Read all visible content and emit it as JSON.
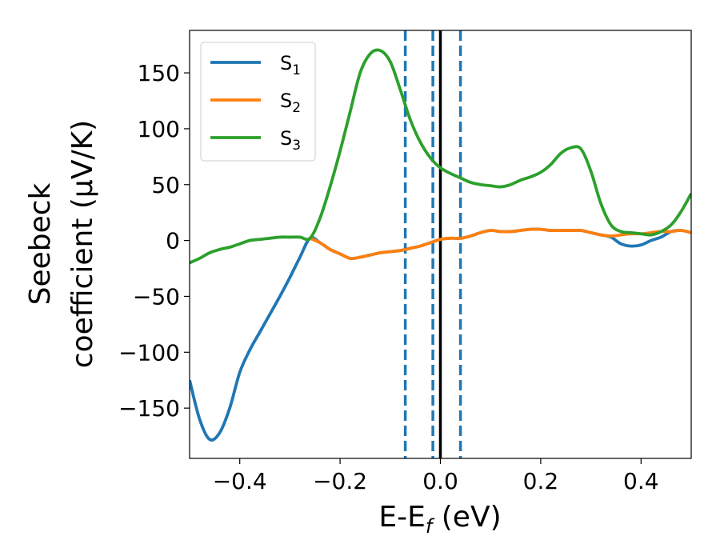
{
  "chart_data": {
    "type": "line",
    "xlabel": {
      "base": "E-E",
      "sub": "f",
      "unit": " (eV)"
    },
    "ylabel": {
      "line1": "Seebeck",
      "line2": "coefficient  (μV/K)"
    },
    "xlim": [
      -0.5,
      0.5
    ],
    "ylim": [
      -195,
      188
    ],
    "xticks": [
      -0.4,
      -0.2,
      0.0,
      0.2,
      0.4
    ],
    "xtick_labels": [
      "−0.4",
      "−0.2",
      "0.0",
      "0.2",
      "0.4"
    ],
    "yticks": [
      150,
      100,
      50,
      0,
      -50,
      -100,
      -150
    ],
    "ytick_labels": [
      "150",
      "100",
      "50",
      "0",
      "−50",
      "−100",
      "−150"
    ],
    "grid": false,
    "legend_position": "top-left",
    "vlines": [
      {
        "x": -0.07,
        "color": "#1f77b4",
        "style": "dashed"
      },
      {
        "x": -0.015,
        "color": "#1f77b4",
        "style": "dashed"
      },
      {
        "x": 0.0,
        "color": "#000000",
        "style": "solid"
      },
      {
        "x": 0.04,
        "color": "#1f77b4",
        "style": "dashed"
      }
    ],
    "series": [
      {
        "name": "S",
        "sub": "1",
        "color": "#1f77b4",
        "points": [
          [
            -0.5,
            -125
          ],
          [
            -0.48,
            -160
          ],
          [
            -0.46,
            -178
          ],
          [
            -0.44,
            -172
          ],
          [
            -0.42,
            -150
          ],
          [
            -0.4,
            -118
          ],
          [
            -0.38,
            -98
          ],
          [
            -0.36,
            -82
          ],
          [
            -0.34,
            -66
          ],
          [
            -0.32,
            -50
          ],
          [
            -0.3,
            -33
          ],
          [
            -0.28,
            -15
          ],
          [
            -0.26,
            2
          ],
          [
            -0.24,
            -2
          ],
          [
            -0.22,
            -8
          ],
          [
            -0.2,
            -12
          ],
          [
            -0.18,
            -16
          ],
          [
            -0.16,
            -15
          ],
          [
            -0.14,
            -13
          ],
          [
            -0.12,
            -11
          ],
          [
            -0.1,
            -10
          ],
          [
            -0.08,
            -9
          ],
          [
            -0.06,
            -7
          ],
          [
            -0.04,
            -5
          ],
          [
            -0.02,
            -2
          ],
          [
            0.0,
            1
          ],
          [
            0.02,
            2
          ],
          [
            0.04,
            2
          ],
          [
            0.06,
            4
          ],
          [
            0.08,
            7
          ],
          [
            0.1,
            9
          ],
          [
            0.12,
            8
          ],
          [
            0.14,
            8
          ],
          [
            0.16,
            9
          ],
          [
            0.18,
            10
          ],
          [
            0.2,
            10
          ],
          [
            0.22,
            9
          ],
          [
            0.24,
            9
          ],
          [
            0.26,
            9
          ],
          [
            0.28,
            9
          ],
          [
            0.3,
            7
          ],
          [
            0.32,
            5
          ],
          [
            0.34,
            3
          ],
          [
            0.36,
            -3
          ],
          [
            0.38,
            -5
          ],
          [
            0.4,
            -4
          ],
          [
            0.42,
            0
          ],
          [
            0.44,
            3
          ],
          [
            0.46,
            8
          ],
          [
            0.48,
            9
          ],
          [
            0.5,
            7
          ]
        ]
      },
      {
        "name": "S",
        "sub": "2",
        "color": "#ff7f0e",
        "points": [
          [
            -0.26,
            2
          ],
          [
            -0.24,
            -2
          ],
          [
            -0.22,
            -8
          ],
          [
            -0.2,
            -12
          ],
          [
            -0.18,
            -16
          ],
          [
            -0.16,
            -15
          ],
          [
            -0.14,
            -13
          ],
          [
            -0.12,
            -11
          ],
          [
            -0.1,
            -10
          ],
          [
            -0.08,
            -9
          ],
          [
            -0.06,
            -7
          ],
          [
            -0.04,
            -5
          ],
          [
            -0.02,
            -2
          ],
          [
            0.0,
            1
          ],
          [
            0.02,
            2
          ],
          [
            0.04,
            2
          ],
          [
            0.06,
            4
          ],
          [
            0.08,
            7
          ],
          [
            0.1,
            9
          ],
          [
            0.12,
            8
          ],
          [
            0.14,
            8
          ],
          [
            0.16,
            9
          ],
          [
            0.18,
            10
          ],
          [
            0.2,
            10
          ],
          [
            0.22,
            9
          ],
          [
            0.24,
            9
          ],
          [
            0.26,
            9
          ],
          [
            0.28,
            9
          ],
          [
            0.3,
            7
          ],
          [
            0.32,
            5
          ],
          [
            0.34,
            4
          ],
          [
            0.36,
            5
          ],
          [
            0.38,
            6
          ],
          [
            0.4,
            6
          ],
          [
            0.42,
            7
          ],
          [
            0.44,
            8
          ],
          [
            0.46,
            8
          ],
          [
            0.48,
            9
          ],
          [
            0.5,
            7
          ]
        ]
      },
      {
        "name": "S",
        "sub": "3",
        "color": "#2ca02c",
        "points": [
          [
            -0.5,
            -20
          ],
          [
            -0.48,
            -16
          ],
          [
            -0.46,
            -11
          ],
          [
            -0.44,
            -8
          ],
          [
            -0.42,
            -6
          ],
          [
            -0.4,
            -3
          ],
          [
            -0.38,
            0
          ],
          [
            -0.36,
            1
          ],
          [
            -0.34,
            2
          ],
          [
            -0.32,
            3
          ],
          [
            -0.3,
            3
          ],
          [
            -0.28,
            3
          ],
          [
            -0.26,
            2
          ],
          [
            -0.24,
            20
          ],
          [
            -0.22,
            48
          ],
          [
            -0.2,
            80
          ],
          [
            -0.18,
            115
          ],
          [
            -0.16,
            150
          ],
          [
            -0.14,
            167
          ],
          [
            -0.12,
            170
          ],
          [
            -0.1,
            160
          ],
          [
            -0.08,
            135
          ],
          [
            -0.06,
            108
          ],
          [
            -0.04,
            88
          ],
          [
            -0.02,
            74
          ],
          [
            0.0,
            65
          ],
          [
            0.02,
            60
          ],
          [
            0.04,
            56
          ],
          [
            0.06,
            52
          ],
          [
            0.08,
            50
          ],
          [
            0.1,
            49
          ],
          [
            0.12,
            48
          ],
          [
            0.14,
            50
          ],
          [
            0.16,
            54
          ],
          [
            0.18,
            57
          ],
          [
            0.2,
            61
          ],
          [
            0.22,
            68
          ],
          [
            0.24,
            78
          ],
          [
            0.26,
            83
          ],
          [
            0.28,
            82
          ],
          [
            0.3,
            62
          ],
          [
            0.32,
            33
          ],
          [
            0.34,
            14
          ],
          [
            0.36,
            8
          ],
          [
            0.38,
            7
          ],
          [
            0.4,
            6
          ],
          [
            0.42,
            5
          ],
          [
            0.44,
            8
          ],
          [
            0.46,
            14
          ],
          [
            0.48,
            26
          ],
          [
            0.5,
            42
          ]
        ]
      }
    ]
  }
}
